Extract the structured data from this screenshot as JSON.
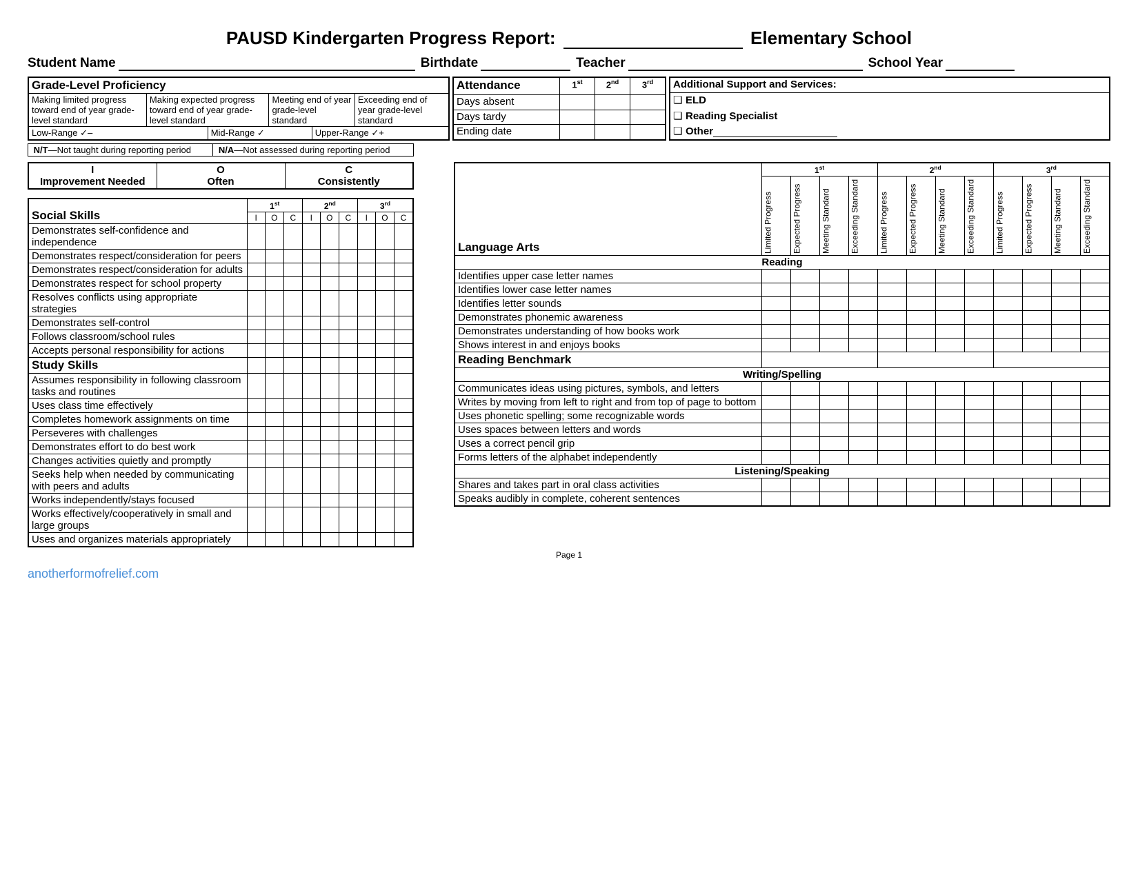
{
  "title": {
    "pre": "PAUSD Kindergarten Progress Report:",
    "post": "Elementary School"
  },
  "header": {
    "student": "Student Name",
    "birthdate": "Birthdate",
    "teacher": "Teacher",
    "schoolyear": "School Year"
  },
  "proficiency": {
    "header": "Grade-Level Proficiency",
    "levels": [
      "Making limited progress toward end of year grade-level standard",
      "Making expected progress toward end of year grade-level standard",
      "Meeting end of year grade-level standard",
      "Exceeding end of year grade-level standard"
    ],
    "ranges": [
      "Low-Range  ✓–",
      "Mid-Range  ✓",
      "Upper-Range  ✓+"
    ]
  },
  "legend_nt": "N/T—Not taught during reporting period",
  "legend_na": "N/A—Not assessed during reporting period",
  "ioc": {
    "I": "I",
    "Ilabel": "Improvement Needed",
    "O": "O",
    "Olabel": "Often",
    "C": "C",
    "Clabel": "Consistently"
  },
  "periods": [
    "1",
    "2",
    "3"
  ],
  "period_suffix": [
    "st",
    "nd",
    "rd"
  ],
  "ioc_letters": [
    "I",
    "O",
    "C"
  ],
  "social": {
    "header": "Social Skills",
    "items": [
      "Demonstrates self-confidence and independence",
      "Demonstrates respect/consideration for peers",
      "Demonstrates respect/consideration for adults",
      "Demonstrates respect for school property",
      "Resolves conflicts using appropriate strategies",
      "Demonstrates self-control",
      "Follows classroom/school rules",
      "Accepts personal responsibility for actions"
    ]
  },
  "study": {
    "header": "Study Skills",
    "items": [
      "Assumes responsibility in following classroom tasks and routines",
      "Uses class time effectively",
      "Completes homework assignments on time",
      "Perseveres with challenges",
      "Demonstrates effort to do best work",
      "Changes activities quietly and promptly",
      "Seeks help when needed by communicating with peers and adults",
      "Works independently/stays focused",
      "Works effectively/cooperatively in small and large groups",
      "Uses and organizes materials appropriately"
    ]
  },
  "attendance": {
    "header": "Attendance",
    "rows": [
      "Days absent",
      "Days tardy",
      "Ending date"
    ]
  },
  "support": {
    "header": "Additional Support and Services:",
    "items": [
      "ELD",
      "Reading Specialist",
      "Other"
    ]
  },
  "progress_cols": [
    "Limited Progress",
    "Expected Progress",
    "Meeting Standard",
    "Exceeding Standard"
  ],
  "lang": {
    "header": "Language Arts",
    "reading_head": "Reading",
    "reading": [
      "Identifies upper case letter names",
      "Identifies lower case letter names",
      "Identifies letter sounds",
      "Demonstrates phonemic awareness",
      "Demonstrates understanding of how books work",
      "Shows interest in and enjoys books"
    ],
    "benchmark": "Reading Benchmark",
    "writing_head": "Writing/Spelling",
    "writing": [
      "Communicates ideas using pictures, symbols, and letters",
      "Writes by moving from left to right and from top of page to bottom",
      "Uses phonetic spelling; some recognizable words",
      "Uses spaces between letters and words",
      "Uses a correct pencil grip",
      "Forms letters of the alphabet independently"
    ],
    "listening_head": "Listening/Speaking",
    "listening": [
      "Shares and takes part in oral class activities",
      "Speaks audibly in complete, coherent sentences"
    ]
  },
  "page": "Page 1",
  "watermark": "anotherformofrelief.com"
}
